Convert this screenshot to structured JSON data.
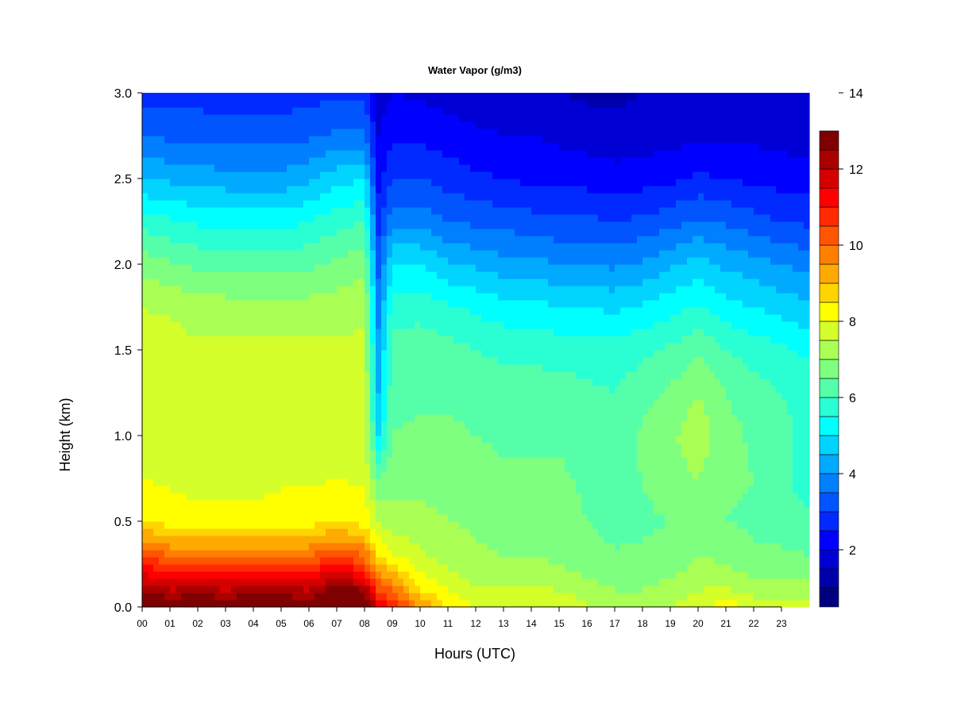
{
  "chart_data": {
    "type": "heatmap",
    "title": "Water Vapor (g/m3)",
    "xlabel": "Hours (UTC)",
    "ylabel": "Height (km)",
    "xlim": [
      0,
      24
    ],
    "ylim": [
      0,
      3.0
    ],
    "x_ticks": [
      "00",
      "01",
      "02",
      "03",
      "04",
      "05",
      "06",
      "07",
      "08",
      "09",
      "10",
      "11",
      "12",
      "13",
      "14",
      "15",
      "16",
      "17",
      "18",
      "19",
      "20",
      "21",
      "22",
      "23"
    ],
    "y_ticks": [
      "0.0",
      "0.5",
      "1.0",
      "1.5",
      "2.0",
      "2.5",
      "3.0"
    ],
    "colorbar": {
      "min": 0.5,
      "max": 14,
      "step": 0.5,
      "tick_labels": [
        "2",
        "4",
        "6",
        "8",
        "10",
        "12",
        "14"
      ],
      "colors": [
        "#00007F",
        "#0000AA",
        "#0000D5",
        "#0000FF",
        "#002AFF",
        "#0055FF",
        "#007FFF",
        "#00AAFF",
        "#00D4FF",
        "#00FFFF",
        "#2AFFD4",
        "#55FFAA",
        "#7FFF7F",
        "#AAFF55",
        "#D4FF2A",
        "#FFFF00",
        "#FFD400",
        "#FFAA00",
        "#FF7F00",
        "#FF5500",
        "#FF2A00",
        "#FF0000",
        "#D50000",
        "#AA0000",
        "#7F0000"
      ]
    },
    "hours": [
      0,
      1,
      2,
      3,
      4,
      5,
      6,
      7,
      8,
      8.5,
      9,
      10,
      11,
      12,
      13,
      14,
      15,
      16,
      17,
      18,
      19,
      20,
      21,
      22,
      23,
      24
    ],
    "heights_km": [
      0.0,
      0.1,
      0.2,
      0.3,
      0.4,
      0.5,
      0.75,
      1.0,
      1.25,
      1.5,
      1.75,
      2.0,
      2.25,
      2.5,
      2.75,
      3.0
    ],
    "values": [
      [
        13.5,
        12.5,
        11.5,
        10.5,
        9.5,
        8.5,
        8.0,
        7.8,
        7.8,
        7.8,
        7.5,
        6.8,
        5.8,
        4.5,
        3.5,
        2.8
      ],
      [
        13.0,
        12.0,
        11.0,
        10.0,
        9.0,
        8.3,
        7.9,
        7.8,
        7.8,
        7.8,
        7.4,
        6.6,
        5.6,
        4.4,
        3.4,
        2.8
      ],
      [
        13.2,
        12.3,
        11.2,
        10.0,
        9.0,
        8.2,
        7.8,
        7.7,
        7.7,
        7.6,
        7.2,
        6.4,
        5.4,
        4.3,
        3.3,
        2.8
      ],
      [
        13.0,
        12.0,
        11.0,
        10.0,
        9.0,
        8.2,
        7.8,
        7.7,
        7.6,
        7.6,
        7.2,
        6.4,
        5.4,
        4.2,
        3.3,
        2.7
      ],
      [
        13.2,
        12.3,
        11.2,
        10.0,
        9.0,
        8.2,
        7.8,
        7.7,
        7.6,
        7.6,
        7.2,
        6.3,
        5.3,
        4.2,
        3.3,
        2.7
      ],
      [
        13.2,
        12.2,
        11.2,
        10.0,
        9.0,
        8.3,
        7.9,
        7.8,
        7.6,
        7.6,
        7.2,
        6.3,
        5.3,
        4.2,
        3.3,
        2.7
      ],
      [
        13.0,
        12.0,
        11.0,
        10.0,
        9.0,
        8.3,
        7.9,
        7.8,
        7.7,
        7.6,
        7.2,
        6.4,
        5.5,
        4.4,
        3.4,
        2.8
      ],
      [
        13.6,
        12.8,
        11.8,
        10.5,
        9.5,
        8.5,
        8.0,
        7.8,
        7.7,
        7.6,
        7.3,
        6.6,
        5.8,
        4.8,
        3.6,
        2.9
      ],
      [
        13.5,
        12.5,
        11.0,
        10.0,
        9.0,
        8.3,
        7.9,
        7.8,
        7.7,
        7.6,
        7.4,
        6.8,
        6.0,
        5.0,
        3.6,
        2.9
      ],
      [
        11.5,
        10.5,
        9.5,
        8.5,
        8.0,
        7.5,
        6.5,
        5.0,
        4.5,
        4.2,
        3.8,
        3.3,
        2.8,
        2.3,
        2.0,
        1.8
      ],
      [
        11.0,
        10.0,
        9.0,
        8.0,
        7.6,
        7.2,
        6.8,
        6.5,
        6.4,
        6.2,
        5.8,
        5.0,
        3.8,
        3.0,
        2.4,
        2.0
      ],
      [
        9.5,
        8.5,
        8.0,
        7.6,
        7.4,
        7.2,
        6.8,
        6.6,
        6.4,
        6.3,
        5.8,
        5.0,
        3.8,
        3.0,
        2.4,
        1.9
      ],
      [
        8.5,
        8.0,
        7.6,
        7.3,
        7.2,
        7.0,
        6.8,
        6.6,
        6.4,
        6.2,
        5.6,
        4.6,
        3.5,
        2.8,
        2.2,
        1.8
      ],
      [
        8.0,
        7.6,
        7.3,
        7.1,
        7.0,
        6.9,
        6.7,
        6.5,
        6.3,
        6.0,
        5.4,
        4.4,
        3.4,
        2.6,
        2.1,
        1.7
      ],
      [
        8.0,
        7.6,
        7.2,
        7.0,
        6.9,
        6.8,
        6.6,
        6.4,
        6.2,
        5.9,
        5.2,
        4.2,
        3.3,
        2.5,
        2.0,
        1.7
      ],
      [
        8.0,
        7.6,
        7.2,
        7.0,
        6.9,
        6.8,
        6.6,
        6.4,
        6.2,
        5.9,
        5.2,
        4.2,
        3.2,
        2.4,
        2.0,
        1.6
      ],
      [
        8.0,
        7.5,
        7.1,
        6.9,
        6.8,
        6.7,
        6.6,
        6.4,
        6.2,
        5.8,
        5.0,
        4.0,
        3.1,
        2.3,
        1.9,
        1.5
      ],
      [
        7.6,
        7.2,
        6.9,
        6.8,
        6.6,
        6.5,
        6.4,
        6.3,
        6.1,
        5.8,
        5.0,
        4.0,
        3.1,
        2.3,
        1.8,
        1.4
      ],
      [
        7.2,
        7.0,
        6.8,
        6.6,
        6.4,
        6.3,
        6.3,
        6.2,
        6.0,
        5.7,
        4.9,
        3.9,
        3.0,
        2.2,
        1.7,
        1.4
      ],
      [
        7.3,
        7.0,
        6.8,
        6.6,
        6.5,
        6.4,
        6.5,
        6.6,
        6.3,
        5.9,
        5.1,
        4.1,
        3.1,
        2.3,
        1.7,
        1.5
      ],
      [
        7.5,
        7.2,
        6.9,
        6.7,
        6.6,
        6.5,
        6.8,
        6.9,
        6.6,
        6.1,
        5.3,
        4.4,
        3.3,
        2.4,
        1.8,
        1.5
      ],
      [
        7.8,
        7.5,
        7.2,
        7.0,
        6.8,
        6.7,
        7.0,
        7.3,
        7.0,
        6.4,
        5.6,
        4.7,
        3.6,
        2.6,
        1.9,
        1.6
      ],
      [
        8.3,
        7.6,
        7.1,
        6.9,
        6.7,
        6.5,
        6.6,
        6.7,
        6.5,
        6.0,
        5.2,
        4.4,
        3.4,
        2.5,
        1.9,
        1.6
      ],
      [
        7.8,
        7.3,
        6.9,
        6.7,
        6.5,
        6.4,
        6.5,
        6.4,
        6.2,
        5.8,
        5.0,
        4.2,
        3.2,
        2.4,
        1.9,
        1.6
      ],
      [
        7.6,
        7.2,
        6.8,
        6.6,
        6.4,
        6.3,
        6.2,
        6.2,
        6.0,
        5.6,
        4.8,
        4.0,
        3.0,
        2.3,
        1.8,
        1.5
      ],
      [
        7.6,
        7.2,
        6.8,
        6.5,
        6.3,
        6.1,
        5.6,
        5.8,
        5.8,
        5.4,
        4.6,
        3.8,
        2.9,
        2.2,
        1.8,
        1.5
      ]
    ]
  }
}
